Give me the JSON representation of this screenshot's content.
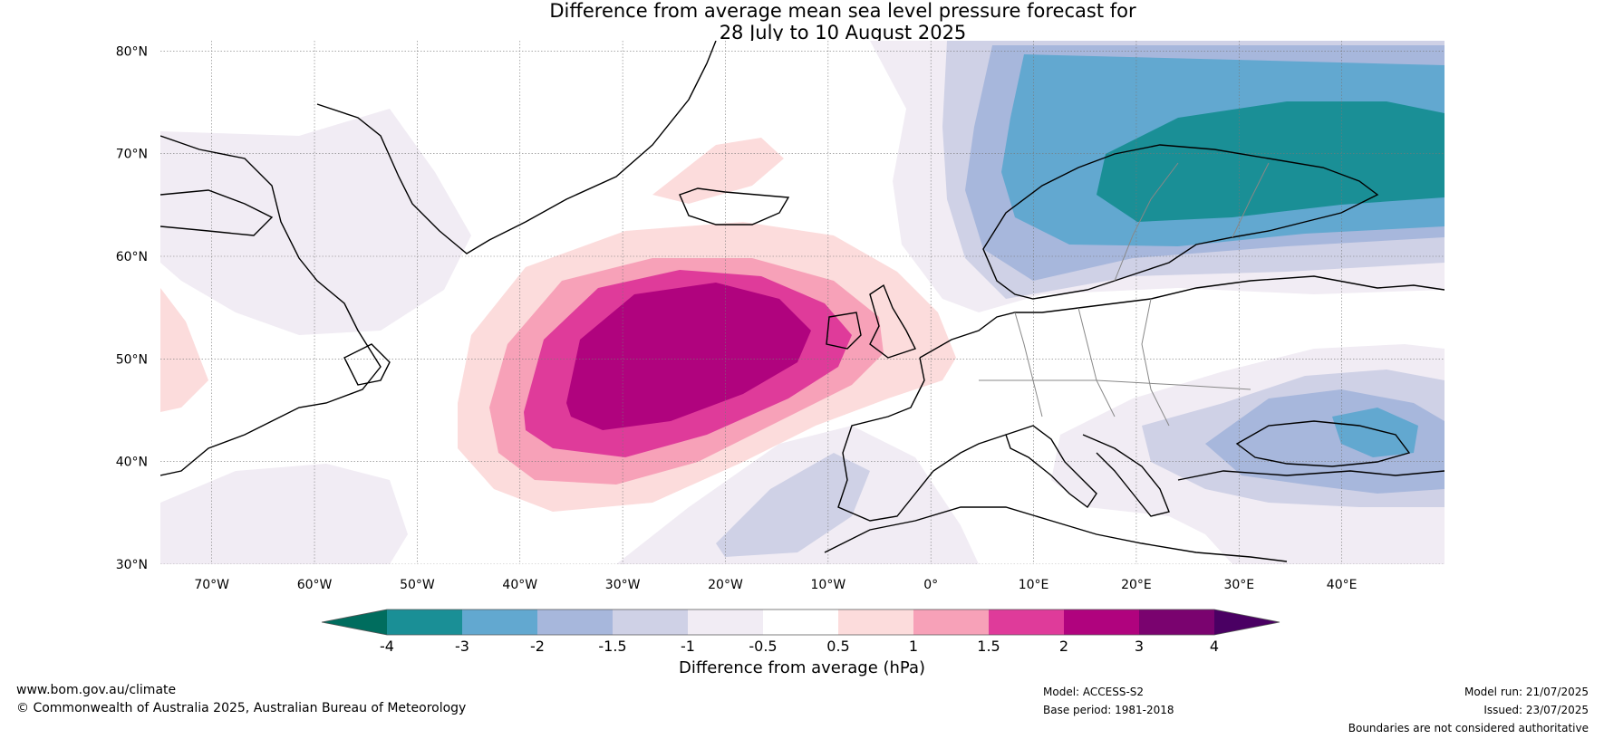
{
  "title": {
    "line1": "Difference from average mean sea level pressure forecast for",
    "line2": "28 July to 10 August 2025"
  },
  "map": {
    "lon_range": [
      -75,
      50
    ],
    "lat_range": [
      30,
      81
    ],
    "lat_labels": [
      "80°N",
      "70°N",
      "60°N",
      "50°N",
      "40°N",
      "30°N"
    ],
    "lat_values": [
      80,
      70,
      60,
      50,
      40,
      30
    ],
    "lon_labels": [
      "70°W",
      "60°W",
      "50°W",
      "40°W",
      "30°W",
      "20°W",
      "10°W",
      "0°",
      "10°E",
      "20°E",
      "30°E",
      "40°E"
    ],
    "lon_values": [
      -70,
      -60,
      -50,
      -40,
      -30,
      -20,
      -10,
      0,
      10,
      20,
      30,
      40
    ]
  },
  "colorbar": {
    "label": "Difference from average (hPa)",
    "tick_labels": [
      "-4",
      "-3",
      "-2",
      "-1.5",
      "-1",
      "-0.5",
      "0.5",
      "1",
      "1.5",
      "2",
      "3",
      "4"
    ],
    "colors": [
      "#006d5e",
      "#1a8f96",
      "#62a8d0",
      "#a7b7dc",
      "#cfd1e6",
      "#f1ecf4",
      "#ffffff",
      "#fcdcdc",
      "#f7a1b8",
      "#df3b9a",
      "#b0037e",
      "#7a036f",
      "#4a0063"
    ]
  },
  "footer": {
    "website": "www.bom.gov.au/climate",
    "copyright": "© Commonwealth of Australia 2025, Australian Bureau of Meteorology",
    "model": "Model: ACCESS-S2",
    "base_period": "Base period: 1981-2018",
    "model_run": "Model run: 21/07/2025",
    "issued": "Issued: 23/07/2025",
    "disclaimer": "Boundaries are not considered authoritative"
  }
}
